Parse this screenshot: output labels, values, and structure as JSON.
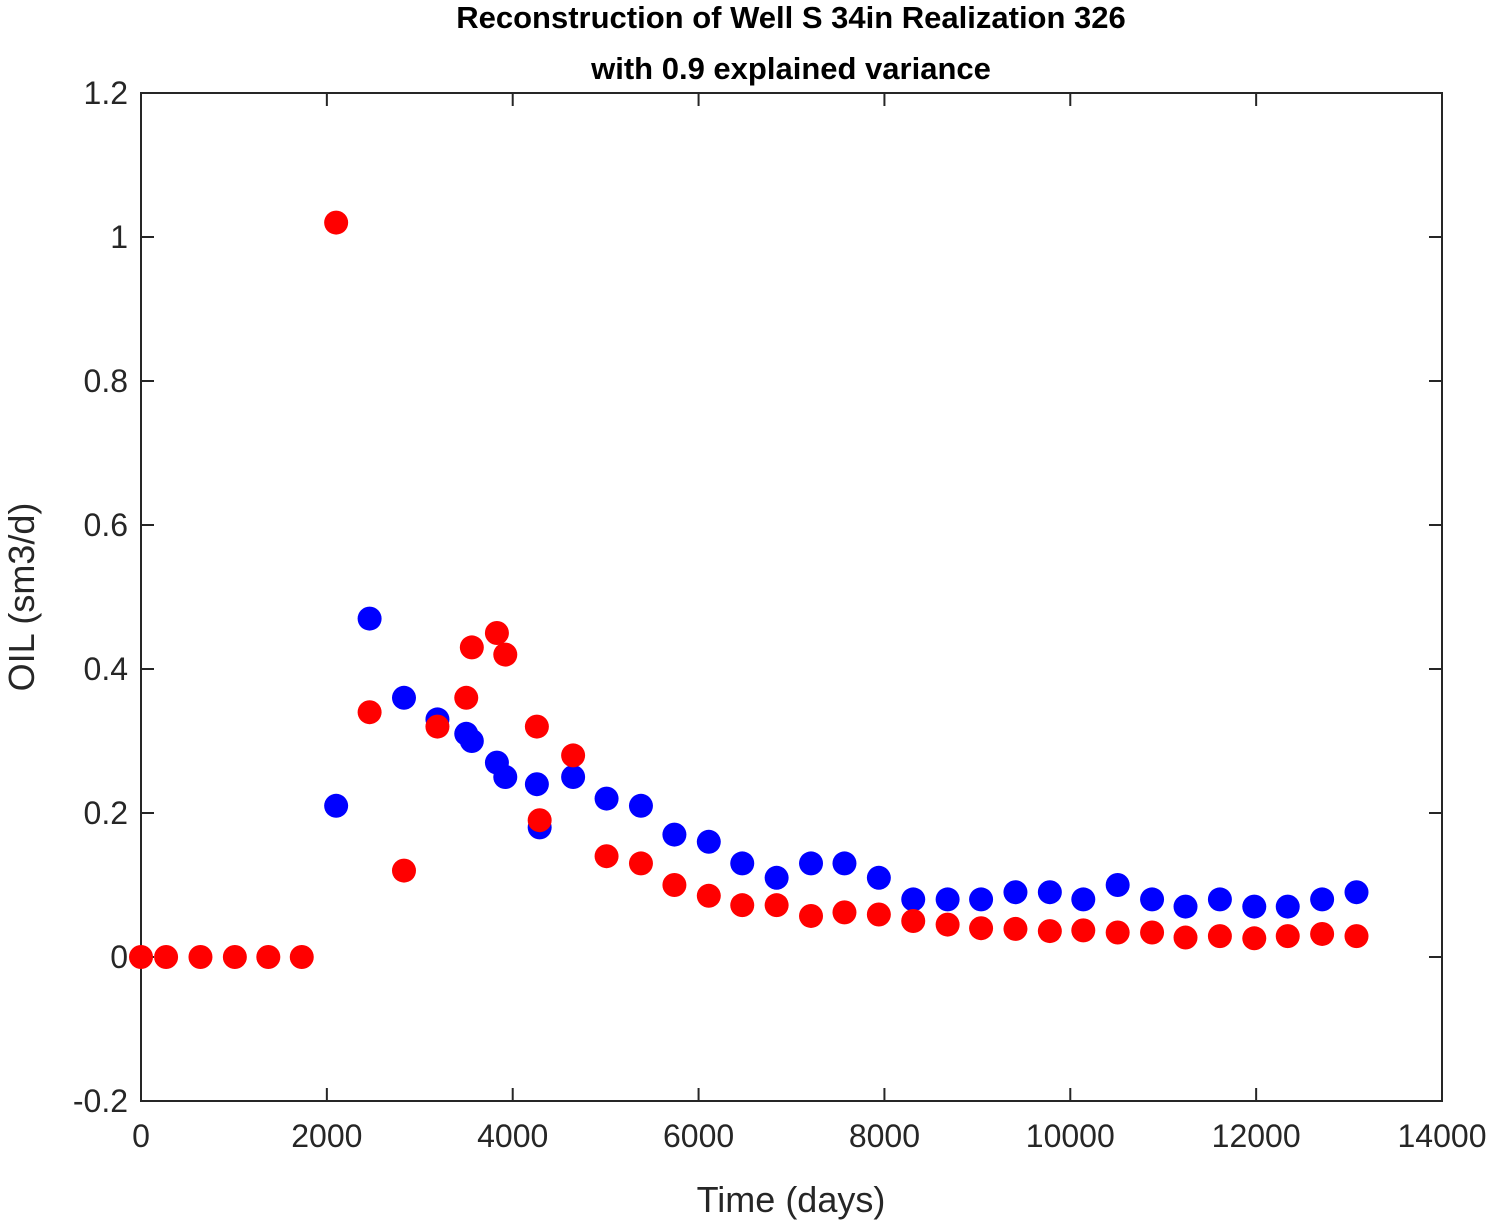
{
  "chart_data": {
    "type": "scatter",
    "title": [
      "Reconstruction of Well S 34in Realization 326",
      "with 0.9 explained variance"
    ],
    "xlabel": "Time (days)",
    "ylabel": "OIL (sm3/d)",
    "xlim": [
      0,
      14000
    ],
    "ylim": [
      -0.2,
      1.2
    ],
    "xticks": [
      0,
      2000,
      4000,
      6000,
      8000,
      10000,
      12000,
      14000
    ],
    "xtick_labels": [
      "0",
      "2000",
      "4000",
      "6000",
      "8000",
      "10000",
      "12000",
      "14000"
    ],
    "yticks": [
      -0.2,
      0,
      0.2,
      0.4,
      0.6,
      0.8,
      1,
      1.2
    ],
    "ytick_labels": [
      "-0.2",
      "0",
      "0.2",
      "0.4",
      "0.6",
      "0.8",
      "1",
      "1.2"
    ],
    "grid": false,
    "series": [
      {
        "color": "#0000ff",
        "points": [
          [
            2100,
            0.21
          ],
          [
            2460,
            0.47
          ],
          [
            2830,
            0.36
          ],
          [
            3190,
            0.33
          ],
          [
            3500,
            0.31
          ],
          [
            3560,
            0.3
          ],
          [
            3830,
            0.27
          ],
          [
            3920,
            0.25
          ],
          [
            4260,
            0.24
          ],
          [
            4290,
            0.18
          ],
          [
            4650,
            0.25
          ],
          [
            5010,
            0.22
          ],
          [
            5380,
            0.21
          ],
          [
            5740,
            0.17
          ],
          [
            6110,
            0.16
          ],
          [
            6470,
            0.13
          ],
          [
            6840,
            0.11
          ],
          [
            7210,
            0.13
          ],
          [
            7570,
            0.13
          ],
          [
            7940,
            0.11
          ],
          [
            8310,
            0.08
          ],
          [
            8680,
            0.08
          ],
          [
            9040,
            0.08
          ],
          [
            9410,
            0.09
          ],
          [
            9780,
            0.09
          ],
          [
            10140,
            0.08
          ],
          [
            10510,
            0.1
          ],
          [
            10880,
            0.08
          ],
          [
            11240,
            0.07
          ],
          [
            11610,
            0.08
          ],
          [
            11980,
            0.07
          ],
          [
            12340,
            0.07
          ],
          [
            12710,
            0.08
          ],
          [
            13080,
            0.09
          ]
        ]
      },
      {
        "color": "#ff0000",
        "points": [
          [
            0,
            0.0
          ],
          [
            270,
            0.0
          ],
          [
            640,
            0.0
          ],
          [
            1010,
            0.0
          ],
          [
            1370,
            0.0
          ],
          [
            1730,
            0.0
          ],
          [
            2100,
            1.02
          ],
          [
            2460,
            0.34
          ],
          [
            2830,
            0.12
          ],
          [
            3190,
            0.32
          ],
          [
            3500,
            0.36
          ],
          [
            3560,
            0.43
          ],
          [
            3830,
            0.45
          ],
          [
            3920,
            0.42
          ],
          [
            4260,
            0.32
          ],
          [
            4290,
            0.19
          ],
          [
            4650,
            0.28
          ],
          [
            5010,
            0.14
          ],
          [
            5380,
            0.13
          ],
          [
            5740,
            0.1
          ],
          [
            6110,
            0.085
          ],
          [
            6470,
            0.072
          ],
          [
            6840,
            0.072
          ],
          [
            7210,
            0.057
          ],
          [
            7570,
            0.062
          ],
          [
            7940,
            0.059
          ],
          [
            8310,
            0.05
          ],
          [
            8680,
            0.045
          ],
          [
            9040,
            0.04
          ],
          [
            9410,
            0.039
          ],
          [
            9780,
            0.036
          ],
          [
            10140,
            0.037
          ],
          [
            10510,
            0.034
          ],
          [
            10880,
            0.034
          ],
          [
            11240,
            0.027
          ],
          [
            11610,
            0.029
          ],
          [
            11980,
            0.026
          ],
          [
            12340,
            0.029
          ],
          [
            12710,
            0.032
          ],
          [
            13080,
            0.029
          ]
        ]
      }
    ]
  }
}
